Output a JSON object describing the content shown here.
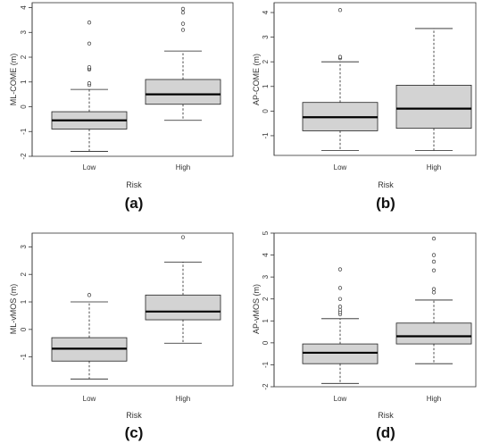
{
  "chart_data": [
    {
      "type": "box",
      "panel_label": "(a)",
      "xlabel": "Risk",
      "ylabel": "ML-COME (m)",
      "categories": [
        "Low",
        "High"
      ],
      "ylim": [
        -2,
        4.2
      ],
      "yticks": [
        -2,
        -1,
        0,
        1,
        2,
        3,
        4
      ],
      "ytick_labels": [
        "-2",
        "-1",
        "0",
        "1",
        "2",
        "3",
        "4"
      ],
      "boxes": [
        {
          "category": "Low",
          "whisker_low": -1.8,
          "q1": -0.9,
          "median": -0.55,
          "q3": -0.2,
          "whisker_high": 0.7,
          "outliers": [
            0.88,
            0.95,
            1.5,
            1.55,
            1.6,
            2.55,
            3.4
          ]
        },
        {
          "category": "High",
          "whisker_low": -0.55,
          "q1": 0.1,
          "median": 0.5,
          "q3": 1.1,
          "whisker_high": 2.25,
          "outliers": [
            3.1,
            3.35,
            3.8,
            3.95
          ]
        }
      ]
    },
    {
      "type": "box",
      "panel_label": "(b)",
      "xlabel": "Risk",
      "ylabel": "AP-COME (m)",
      "categories": [
        "Low",
        "High"
      ],
      "ylim": [
        -1.8,
        4.4
      ],
      "yticks": [
        -1,
        0,
        1,
        2,
        3,
        4
      ],
      "ytick_labels": [
        "-1",
        "0",
        "1",
        "2",
        "3",
        "4"
      ],
      "boxes": [
        {
          "category": "Low",
          "whisker_low": -1.6,
          "q1": -0.8,
          "median": -0.25,
          "q3": 0.35,
          "whisker_high": 2.0,
          "outliers": [
            2.15,
            2.2,
            4.1
          ]
        },
        {
          "category": "High",
          "whisker_low": -1.6,
          "q1": -0.7,
          "median": 0.1,
          "q3": 1.05,
          "whisker_high": 3.35,
          "outliers": []
        }
      ]
    },
    {
      "type": "box",
      "panel_label": "(c)",
      "xlabel": "Risk",
      "ylabel": "ML-vMOS (m)",
      "categories": [
        "Low",
        "High"
      ],
      "ylim": [
        -2.05,
        3.5
      ],
      "yticks": [
        -1,
        0,
        1,
        2,
        3
      ],
      "ytick_labels": [
        "-1",
        "0",
        "1",
        "2",
        "3"
      ],
      "boxes": [
        {
          "category": "Low",
          "whisker_low": -1.8,
          "q1": -1.15,
          "median": -0.7,
          "q3": -0.3,
          "whisker_high": 1.0,
          "outliers": [
            1.25
          ]
        },
        {
          "category": "High",
          "whisker_low": -0.5,
          "q1": 0.35,
          "median": 0.65,
          "q3": 1.25,
          "whisker_high": 2.45,
          "outliers": [
            3.35
          ]
        }
      ]
    },
    {
      "type": "box",
      "panel_label": "(d)",
      "xlabel": "Risk",
      "ylabel": "AP-vMOS (m)",
      "categories": [
        "Low",
        "High"
      ],
      "ylim": [
        -2,
        5
      ],
      "yticks": [
        -2,
        -1,
        0,
        1,
        2,
        3,
        4,
        5
      ],
      "ytick_labels": [
        "-2",
        "-1",
        "0",
        "1",
        "2",
        "3",
        "4",
        "5"
      ],
      "boxes": [
        {
          "category": "Low",
          "whisker_low": -1.85,
          "q1": -0.95,
          "median": -0.45,
          "q3": -0.05,
          "whisker_high": 1.1,
          "outliers": [
            1.3,
            1.4,
            1.5,
            1.65,
            2.0,
            2.5,
            3.35
          ]
        },
        {
          "category": "High",
          "whisker_low": -0.95,
          "q1": -0.05,
          "median": 0.3,
          "q3": 0.9,
          "whisker_high": 1.95,
          "outliers": [
            2.3,
            2.45,
            3.3,
            3.7,
            4.0,
            4.75
          ]
        }
      ]
    }
  ]
}
